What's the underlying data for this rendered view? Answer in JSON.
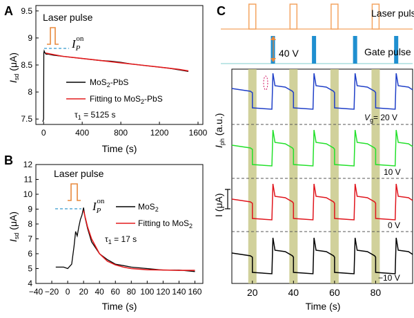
{
  "panels": {
    "a": "A",
    "b": "B",
    "c": "C"
  },
  "chart_data": [
    {
      "type": "line",
      "panel": "A",
      "annotation": "Laser pulse",
      "peak_label": {
        "main": "I",
        "sub": "P",
        "sup": "on"
      },
      "ylabel": {
        "main": "I",
        "sub": "sd",
        "rest": " (μA)"
      },
      "xlabel": "Time (s)",
      "xlim": [
        -80,
        1650
      ],
      "ylim": [
        7.4,
        9.6
      ],
      "xticks": [
        0,
        400,
        800,
        1200,
        1600
      ],
      "yticks": [
        7.5,
        8.0,
        8.5,
        9.0,
        9.5
      ],
      "series": [
        {
          "name": "MoS2-PbS",
          "legend": {
            "main": "MoS",
            "sub": "2",
            "rest": "-PbS"
          },
          "color": "#000000",
          "x": [
            -8,
            0,
            2,
            6,
            12,
            25,
            50,
            100,
            200,
            300,
            400,
            500,
            600,
            700,
            800,
            900,
            1000,
            1100,
            1200,
            1300,
            1400,
            1500
          ],
          "y": [
            7.45,
            7.5,
            8.72,
            8.76,
            8.73,
            8.7,
            8.7,
            8.68,
            8.66,
            8.64,
            8.62,
            8.6,
            8.58,
            8.57,
            8.55,
            8.52,
            8.5,
            8.48,
            8.46,
            8.44,
            8.41,
            8.38
          ]
        },
        {
          "name": "Fitting to MoS2-PbS",
          "legend": {
            "main": "Fitting to MoS",
            "sub": "2",
            "rest": "-PbS"
          },
          "color": "#e31a1c",
          "x": [
            20,
            200,
            400,
            600,
            800,
            1000,
            1200,
            1400,
            1500
          ],
          "y": [
            8.72,
            8.66,
            8.62,
            8.58,
            8.54,
            8.5,
            8.46,
            8.42,
            8.39
          ]
        }
      ],
      "tau": {
        "main": "τ",
        "sub": "1",
        "rest": " = 5125 s"
      }
    },
    {
      "type": "line",
      "panel": "B",
      "annotation": "Laser pulse",
      "peak_label": {
        "main": "I",
        "sub": "P",
        "sup": "on"
      },
      "ylabel": {
        "main": "I",
        "sub": "sd",
        "rest": " (μA)"
      },
      "xlabel": "Time (s)",
      "xlim": [
        -40,
        170
      ],
      "ylim": [
        4,
        12
      ],
      "xticks": [
        -40,
        -20,
        0,
        20,
        40,
        60,
        80,
        100,
        120,
        140,
        160
      ],
      "yticks": [
        4,
        5,
        6,
        7,
        8,
        9,
        10,
        11,
        12
      ],
      "series": [
        {
          "name": "MoS2",
          "legend": {
            "main": "MoS",
            "sub": "2",
            "rest": ""
          },
          "color": "#000000",
          "x": [
            -15,
            -5,
            0,
            5,
            8,
            10,
            12,
            14,
            16,
            18,
            20,
            22,
            25,
            30,
            40,
            50,
            60,
            70,
            80,
            100,
            120,
            140,
            160
          ],
          "y": [
            5.1,
            5.1,
            5.0,
            5.3,
            6.5,
            7.5,
            7.2,
            7.8,
            8.3,
            8.6,
            9.1,
            8.4,
            7.7,
            6.8,
            6.0,
            5.6,
            5.3,
            5.2,
            5.1,
            5.0,
            4.9,
            4.9,
            4.8
          ]
        },
        {
          "name": "Fitting to MoS2",
          "legend": {
            "main": "Fitting to MoS",
            "sub": "2",
            "rest": ""
          },
          "color": "#e31a1c",
          "x": [
            20,
            25,
            30,
            40,
            50,
            60,
            70,
            80,
            100,
            120,
            140,
            160
          ],
          "y": [
            8.9,
            7.8,
            7.0,
            6.0,
            5.5,
            5.25,
            5.1,
            5.0,
            4.92,
            4.9,
            4.88,
            4.88
          ]
        }
      ],
      "tau": {
        "main": "τ",
        "sub": "1",
        "rest": " = 17 s"
      }
    },
    {
      "type": "line",
      "panel": "C",
      "top_labels": {
        "laser": "Laser pulse",
        "gate": "Gate pulse",
        "gate_amplitude": "40 V"
      },
      "ylabel": {
        "main": "I",
        "sub": "ph",
        "rest": " (a.u.)"
      },
      "scale_bar": "I (μA)",
      "xlabel": "Time (s)",
      "xlim": [
        10,
        98
      ],
      "xticks": [
        20,
        40,
        60,
        80
      ],
      "laser_pulse_times": [
        20,
        40,
        60,
        80
      ],
      "gate_pulse_times": [
        30,
        50,
        70,
        90
      ],
      "series": [
        {
          "name": "20 V",
          "label": "= 20 V",
          "label_prefix": {
            "main": "V",
            "sub": "g"
          },
          "color": "#1f3fc8"
        },
        {
          "name": "10 V",
          "label": "10 V",
          "color": "#22e02a"
        },
        {
          "name": "0 V",
          "label": "0 V",
          "color": "#e0141c"
        },
        {
          "name": "-10 V",
          "label": "−10 V",
          "color": "#000000"
        }
      ],
      "colors": {
        "laser": "#f4a460",
        "gate": "#1f8fd0",
        "highlight": "#c9c98a",
        "baseline": "#99d6d6"
      }
    }
  ]
}
